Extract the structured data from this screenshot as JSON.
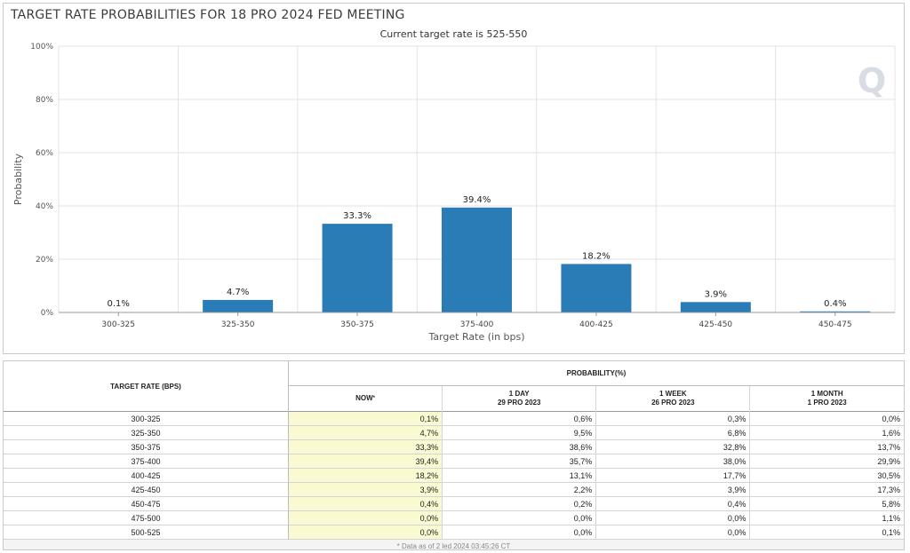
{
  "chart_data": {
    "type": "bar",
    "title": "TARGET RATE PROBABILITIES FOR 18 PRO 2024 FED MEETING",
    "subtitle": "Current target rate is 525-550",
    "xlabel": "Target Rate (in bps)",
    "ylabel": "Probability",
    "categories": [
      "300-325",
      "325-350",
      "350-375",
      "375-400",
      "400-425",
      "425-450",
      "450-475"
    ],
    "values": [
      0.1,
      4.7,
      33.3,
      39.4,
      18.2,
      3.9,
      0.4
    ],
    "data_labels": [
      "0.1%",
      "4.7%",
      "33.3%",
      "39.4%",
      "18.2%",
      "3.9%",
      "0.4%"
    ],
    "ylim": [
      0,
      100
    ],
    "yticks": [
      "0%",
      "20%",
      "40%",
      "60%",
      "80%",
      "100%"
    ],
    "grid": true,
    "bar_color": "#2a7cb6"
  },
  "watermark": "Q",
  "table": {
    "rate_header": "TARGET RATE (BPS)",
    "prob_header": "PROBABILITY(%)",
    "now_header": "NOW",
    "now_marker": "*",
    "columns": [
      {
        "line1": "1 DAY",
        "line2": "29 PRO 2023"
      },
      {
        "line1": "1 WEEK",
        "line2": "26 PRO 2023"
      },
      {
        "line1": "1 MONTH",
        "line2": "1 PRO 2023"
      }
    ],
    "rows": [
      {
        "rate": "300-325",
        "now": "0,1%",
        "day": "0,6%",
        "week": "0,3%",
        "month": "0,0%"
      },
      {
        "rate": "325-350",
        "now": "4,7%",
        "day": "9,5%",
        "week": "6,8%",
        "month": "1,6%"
      },
      {
        "rate": "350-375",
        "now": "33,3%",
        "day": "38,6%",
        "week": "32,8%",
        "month": "13,7%"
      },
      {
        "rate": "375-400",
        "now": "39,4%",
        "day": "35,7%",
        "week": "38,0%",
        "month": "29,9%"
      },
      {
        "rate": "400-425",
        "now": "18,2%",
        "day": "13,1%",
        "week": "17,7%",
        "month": "30,5%"
      },
      {
        "rate": "425-450",
        "now": "3,9%",
        "day": "2,2%",
        "week": "3,9%",
        "month": "17,3%"
      },
      {
        "rate": "450-475",
        "now": "0,4%",
        "day": "0,2%",
        "week": "0,4%",
        "month": "5,8%"
      },
      {
        "rate": "475-500",
        "now": "0,0%",
        "day": "0,0%",
        "week": "0,0%",
        "month": "1,1%"
      },
      {
        "rate": "500-525",
        "now": "0,0%",
        "day": "0,0%",
        "week": "0,0%",
        "month": "0,1%"
      }
    ],
    "footnote": "* Data as of 2 led 2024 03:45:26 CT"
  }
}
